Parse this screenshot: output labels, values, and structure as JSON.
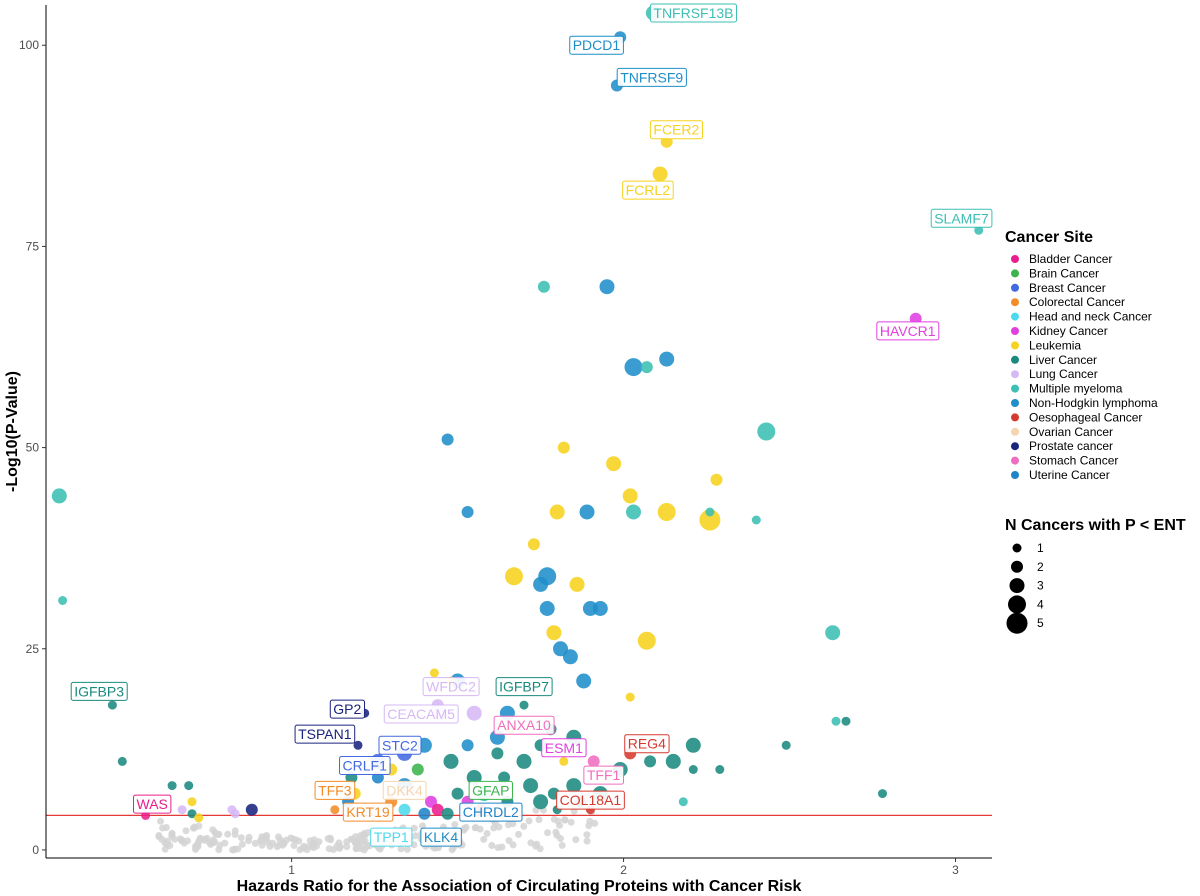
{
  "chart_data": {
    "type": "scatter",
    "title": "",
    "xlabel": "Hazards Ratio for the Association of Circulating Proteins with Cancer Risk",
    "ylabel": "-Log10(P-Value)",
    "xlim": [
      0.26,
      3.11
    ],
    "ylim": [
      -1,
      105
    ],
    "x_ticks": [
      1,
      2,
      3
    ],
    "y_ticks": [
      0,
      25,
      50,
      75,
      100
    ],
    "threshold_line": 4.3,
    "threshold_color": "#e53935",
    "grid": false,
    "legend": {
      "placement": "right",
      "color_title": "Cancer Site",
      "size_title": "N Cancers with P < ENT",
      "sizes": [
        1,
        2,
        3,
        4,
        5
      ]
    },
    "sites": [
      {
        "name": "Bladder Cancer",
        "color": "#e91e8c"
      },
      {
        "name": "Brain Cancer",
        "color": "#3cb44b"
      },
      {
        "name": "Breast Cancer",
        "color": "#4169e1"
      },
      {
        "name": "Colorectal Cancer",
        "color": "#f28c28"
      },
      {
        "name": "Head and neck Cancer",
        "color": "#4dd9ec"
      },
      {
        "name": "Kidney Cancer",
        "color": "#e040e0"
      },
      {
        "name": "Leukemia",
        "color": "#f7d21e"
      },
      {
        "name": "Liver Cancer",
        "color": "#1a8a7e"
      },
      {
        "name": "Lung Cancer",
        "color": "#d6b8f5"
      },
      {
        "name": "Multiple myeloma",
        "color": "#3cbfb4"
      },
      {
        "name": "Non-Hodgkin lymphoma",
        "color": "#1f8ec9"
      },
      {
        "name": "Oesophageal Cancer",
        "color": "#d63a2f"
      },
      {
        "name": "Ovarian Cancer",
        "color": "#f5d5b0"
      },
      {
        "name": "Prostate cancer",
        "color": "#1a237e"
      },
      {
        "name": "Stomach Cancer",
        "color": "#f06ec0"
      },
      {
        "name": "Uterine Cancer",
        "color": "#1f85c9"
      }
    ],
    "points": [
      {
        "x": 2.09,
        "y": 104,
        "site": "Multiple myeloma",
        "n": 3
      },
      {
        "x": 1.99,
        "y": 101,
        "site": "Non-Hodgkin lymphoma",
        "n": 2
      },
      {
        "x": 1.98,
        "y": 95,
        "site": "Non-Hodgkin lymphoma",
        "n": 2
      },
      {
        "x": 2.13,
        "y": 88,
        "site": "Leukemia",
        "n": 2
      },
      {
        "x": 2.11,
        "y": 84,
        "site": "Leukemia",
        "n": 3
      },
      {
        "x": 3.07,
        "y": 77,
        "site": "Multiple myeloma",
        "n": 1
      },
      {
        "x": 1.76,
        "y": 70,
        "site": "Multiple myeloma",
        "n": 2
      },
      {
        "x": 1.95,
        "y": 70,
        "site": "Non-Hodgkin lymphoma",
        "n": 3
      },
      {
        "x": 2.88,
        "y": 66,
        "site": "Kidney Cancer",
        "n": 2
      },
      {
        "x": 2.03,
        "y": 60,
        "site": "Non-Hodgkin lymphoma",
        "n": 4
      },
      {
        "x": 2.07,
        "y": 60,
        "site": "Multiple myeloma",
        "n": 2
      },
      {
        "x": 2.13,
        "y": 61,
        "site": "Non-Hodgkin lymphoma",
        "n": 3
      },
      {
        "x": 2.43,
        "y": 52,
        "site": "Multiple myeloma",
        "n": 4
      },
      {
        "x": 1.47,
        "y": 51,
        "site": "Non-Hodgkin lymphoma",
        "n": 2
      },
      {
        "x": 1.82,
        "y": 50,
        "site": "Leukemia",
        "n": 2
      },
      {
        "x": 1.97,
        "y": 48,
        "site": "Leukemia",
        "n": 3
      },
      {
        "x": 2.28,
        "y": 46,
        "site": "Leukemia",
        "n": 2
      },
      {
        "x": 0.3,
        "y": 44,
        "site": "Multiple myeloma",
        "n": 3
      },
      {
        "x": 2.02,
        "y": 44,
        "site": "Leukemia",
        "n": 3
      },
      {
        "x": 1.53,
        "y": 42,
        "site": "Non-Hodgkin lymphoma",
        "n": 2
      },
      {
        "x": 1.8,
        "y": 42,
        "site": "Leukemia",
        "n": 3
      },
      {
        "x": 1.89,
        "y": 42,
        "site": "Non-Hodgkin lymphoma",
        "n": 3
      },
      {
        "x": 2.03,
        "y": 42,
        "site": "Multiple myeloma",
        "n": 3
      },
      {
        "x": 2.13,
        "y": 42,
        "site": "Leukemia",
        "n": 4
      },
      {
        "x": 2.26,
        "y": 41,
        "site": "Leukemia",
        "n": 5
      },
      {
        "x": 2.26,
        "y": 42,
        "site": "Multiple myeloma",
        "n": 1
      },
      {
        "x": 2.4,
        "y": 41,
        "site": "Multiple myeloma",
        "n": 1
      },
      {
        "x": 1.73,
        "y": 38,
        "site": "Leukemia",
        "n": 2
      },
      {
        "x": 1.67,
        "y": 34,
        "site": "Leukemia",
        "n": 4
      },
      {
        "x": 1.77,
        "y": 34,
        "site": "Non-Hodgkin lymphoma",
        "n": 4
      },
      {
        "x": 1.75,
        "y": 33,
        "site": "Non-Hodgkin lymphoma",
        "n": 3
      },
      {
        "x": 1.86,
        "y": 33,
        "site": "Leukemia",
        "n": 3
      },
      {
        "x": 0.31,
        "y": 31,
        "site": "Multiple myeloma",
        "n": 1
      },
      {
        "x": 1.9,
        "y": 30,
        "site": "Non-Hodgkin lymphoma",
        "n": 3
      },
      {
        "x": 1.93,
        "y": 30,
        "site": "Non-Hodgkin lymphoma",
        "n": 3
      },
      {
        "x": 1.77,
        "y": 30,
        "site": "Non-Hodgkin lymphoma",
        "n": 3
      },
      {
        "x": 1.79,
        "y": 27,
        "site": "Leukemia",
        "n": 3
      },
      {
        "x": 2.07,
        "y": 26,
        "site": "Leukemia",
        "n": 4
      },
      {
        "x": 2.63,
        "y": 27,
        "site": "Multiple myeloma",
        "n": 3
      },
      {
        "x": 1.81,
        "y": 25,
        "site": "Non-Hodgkin lymphoma",
        "n": 3
      },
      {
        "x": 1.84,
        "y": 24,
        "site": "Non-Hodgkin lymphoma",
        "n": 3
      },
      {
        "x": 1.88,
        "y": 21,
        "site": "Non-Hodgkin lymphoma",
        "n": 3
      },
      {
        "x": 1.43,
        "y": 22,
        "site": "Leukemia",
        "n": 1
      },
      {
        "x": 1.5,
        "y": 21,
        "site": "Non-Hodgkin lymphoma",
        "n": 3
      },
      {
        "x": 2.02,
        "y": 19,
        "site": "Leukemia",
        "n": 1
      },
      {
        "x": 0.46,
        "y": 18,
        "site": "Liver Cancer",
        "n": 1
      },
      {
        "x": 1.7,
        "y": 18,
        "site": "Liver Cancer",
        "n": 1
      },
      {
        "x": 1.44,
        "y": 18,
        "site": "Lung Cancer",
        "n": 2
      },
      {
        "x": 1.55,
        "y": 17,
        "site": "Lung Cancer",
        "n": 3
      },
      {
        "x": 1.45,
        "y": 17,
        "site": "Lung Cancer",
        "n": 3
      },
      {
        "x": 1.22,
        "y": 17,
        "site": "Prostate cancer",
        "n": 1
      },
      {
        "x": 1.65,
        "y": 17,
        "site": "Non-Hodgkin lymphoma",
        "n": 3
      },
      {
        "x": 2.64,
        "y": 16,
        "site": "Multiple myeloma",
        "n": 1
      },
      {
        "x": 2.67,
        "y": 16,
        "site": "Liver Cancer",
        "n": 1
      },
      {
        "x": 1.78,
        "y": 15,
        "site": "Liver Cancer",
        "n": 2
      },
      {
        "x": 1.85,
        "y": 14,
        "site": "Liver Cancer",
        "n": 3
      },
      {
        "x": 1.2,
        "y": 13,
        "site": "Prostate cancer",
        "n": 1
      },
      {
        "x": 1.4,
        "y": 13,
        "site": "Non-Hodgkin lymphoma",
        "n": 3
      },
      {
        "x": 1.53,
        "y": 13,
        "site": "Non-Hodgkin lymphoma",
        "n": 2
      },
      {
        "x": 1.62,
        "y": 14,
        "site": "Non-Hodgkin lymphoma",
        "n": 3
      },
      {
        "x": 1.75,
        "y": 13,
        "site": "Liver Cancer",
        "n": 2
      },
      {
        "x": 1.34,
        "y": 12,
        "site": "Breast Cancer",
        "n": 3
      },
      {
        "x": 1.26,
        "y": 11,
        "site": "Breast Cancer",
        "n": 3
      },
      {
        "x": 1.62,
        "y": 12,
        "site": "Liver Cancer",
        "n": 2
      },
      {
        "x": 1.91,
        "y": 11,
        "site": "Stomach Cancer",
        "n": 2
      },
      {
        "x": 2.02,
        "y": 12,
        "site": "Oesophageal Cancer",
        "n": 2
      },
      {
        "x": 2.21,
        "y": 13,
        "site": "Liver Cancer",
        "n": 3
      },
      {
        "x": 2.49,
        "y": 13,
        "site": "Liver Cancer",
        "n": 1
      },
      {
        "x": 0.49,
        "y": 11,
        "site": "Liver Cancer",
        "n": 1
      },
      {
        "x": 1.48,
        "y": 11,
        "site": "Liver Cancer",
        "n": 3
      },
      {
        "x": 1.7,
        "y": 11,
        "site": "Liver Cancer",
        "n": 3
      },
      {
        "x": 1.82,
        "y": 11,
        "site": "Leukemia",
        "n": 1
      },
      {
        "x": 2.15,
        "y": 11,
        "site": "Liver Cancer",
        "n": 3
      },
      {
        "x": 2.08,
        "y": 11,
        "site": "Liver Cancer",
        "n": 2
      },
      {
        "x": 1.99,
        "y": 10,
        "site": "Liver Cancer",
        "n": 3
      },
      {
        "x": 1.38,
        "y": 10,
        "site": "Brain Cancer",
        "n": 2
      },
      {
        "x": 1.3,
        "y": 10,
        "site": "Leukemia",
        "n": 2
      },
      {
        "x": 1.55,
        "y": 9,
        "site": "Liver Cancer",
        "n": 3
      },
      {
        "x": 1.64,
        "y": 9,
        "site": "Liver Cancer",
        "n": 2
      },
      {
        "x": 2.21,
        "y": 10,
        "site": "Liver Cancer",
        "n": 1
      },
      {
        "x": 2.29,
        "y": 10,
        "site": "Liver Cancer",
        "n": 1
      },
      {
        "x": 1.26,
        "y": 9,
        "site": "Uterine Cancer",
        "n": 2
      },
      {
        "x": 1.18,
        "y": 9,
        "site": "Liver Cancer",
        "n": 2
      },
      {
        "x": 1.34,
        "y": 8,
        "site": "Non-Hodgkin lymphoma",
        "n": 3
      },
      {
        "x": 1.72,
        "y": 8,
        "site": "Liver Cancer",
        "n": 3
      },
      {
        "x": 1.85,
        "y": 8,
        "site": "Liver Cancer",
        "n": 3
      },
      {
        "x": 1.93,
        "y": 7,
        "site": "Liver Cancer",
        "n": 3
      },
      {
        "x": 0.64,
        "y": 8,
        "site": "Liver Cancer",
        "n": 1
      },
      {
        "x": 0.69,
        "y": 8,
        "site": "Liver Cancer",
        "n": 1
      },
      {
        "x": 1.19,
        "y": 7,
        "site": "Leukemia",
        "n": 2
      },
      {
        "x": 1.35,
        "y": 7,
        "site": "Ovarian Cancer",
        "n": 2
      },
      {
        "x": 1.5,
        "y": 7,
        "site": "Liver Cancer",
        "n": 2
      },
      {
        "x": 1.58,
        "y": 7,
        "site": "Multiple myeloma",
        "n": 3
      },
      {
        "x": 1.79,
        "y": 7,
        "site": "Liver Cancer",
        "n": 2
      },
      {
        "x": 2.78,
        "y": 7,
        "site": "Liver Cancer",
        "n": 1
      },
      {
        "x": 0.7,
        "y": 6,
        "site": "Leukemia",
        "n": 1
      },
      {
        "x": 1.17,
        "y": 6,
        "site": "Uterine Cancer",
        "n": 2
      },
      {
        "x": 1.3,
        "y": 6,
        "site": "Colorectal Cancer",
        "n": 2
      },
      {
        "x": 1.42,
        "y": 6,
        "site": "Kidney Cancer",
        "n": 2
      },
      {
        "x": 1.53,
        "y": 6,
        "site": "Kidney Cancer",
        "n": 2
      },
      {
        "x": 1.65,
        "y": 6,
        "site": "Liver Cancer",
        "n": 2
      },
      {
        "x": 1.75,
        "y": 6,
        "site": "Liver Cancer",
        "n": 3
      },
      {
        "x": 1.87,
        "y": 6,
        "site": "Liver Cancer",
        "n": 2
      },
      {
        "x": 2.18,
        "y": 6,
        "site": "Multiple myeloma",
        "n": 1
      },
      {
        "x": 0.67,
        "y": 5,
        "site": "Lung Cancer",
        "n": 1
      },
      {
        "x": 0.82,
        "y": 5,
        "site": "Lung Cancer",
        "n": 1
      },
      {
        "x": 0.88,
        "y": 5,
        "site": "Prostate cancer",
        "n": 2
      },
      {
        "x": 1.13,
        "y": 5,
        "site": "Colorectal Cancer",
        "n": 1
      },
      {
        "x": 1.24,
        "y": 5,
        "site": "Ovarian Cancer",
        "n": 2
      },
      {
        "x": 1.34,
        "y": 5,
        "site": "Head and neck Cancer",
        "n": 2
      },
      {
        "x": 1.44,
        "y": 5,
        "site": "Bladder Cancer",
        "n": 2
      },
      {
        "x": 1.57,
        "y": 5,
        "site": "Oesophageal Cancer",
        "n": 2
      },
      {
        "x": 1.8,
        "y": 5,
        "site": "Liver Cancer",
        "n": 1
      },
      {
        "x": 1.9,
        "y": 5,
        "site": "Oesophageal Cancer",
        "n": 1
      },
      {
        "x": 0.56,
        "y": 4.3,
        "site": "Bladder Cancer",
        "n": 1
      },
      {
        "x": 0.7,
        "y": 4.5,
        "site": "Liver Cancer",
        "n": 1
      },
      {
        "x": 0.72,
        "y": 4,
        "site": "Leukemia",
        "n": 1
      },
      {
        "x": 0.83,
        "y": 4.5,
        "site": "Lung Cancer",
        "n": 1
      },
      {
        "x": 1.4,
        "y": 4.5,
        "site": "Uterine Cancer",
        "n": 2
      },
      {
        "x": 1.47,
        "y": 4.5,
        "site": "Liver Cancer",
        "n": 2
      },
      {
        "x": 1.48,
        "y": 21,
        "site": "Leukemia",
        "n": 1
      },
      {
        "x": 1.66,
        "y": 15,
        "site": "Leukemia",
        "n": 1
      }
    ],
    "background_points": {
      "color": "#d3d3d3",
      "count": 240
    },
    "labels": [
      {
        "text": "TNFRSF13B",
        "x": 2.09,
        "y": 104,
        "site": "Multiple myeloma",
        "anchor": "start"
      },
      {
        "text": "PDCD1",
        "x": 1.99,
        "y": 100,
        "site": "Non-Hodgkin lymphoma",
        "anchor": "end"
      },
      {
        "text": "TNFRSF9",
        "x": 1.99,
        "y": 96,
        "site": "Non-Hodgkin lymphoma",
        "anchor": "start"
      },
      {
        "text": "FCER2",
        "x": 2.09,
        "y": 89.5,
        "site": "Leukemia",
        "anchor": "start"
      },
      {
        "text": "FCRL2",
        "x": 2.14,
        "y": 82,
        "site": "Leukemia",
        "anchor": "end"
      },
      {
        "text": "SLAMF7",
        "x": 3.1,
        "y": 78.5,
        "site": "Multiple myeloma",
        "anchor": "end"
      },
      {
        "text": "HAVCR1",
        "x": 2.94,
        "y": 64.5,
        "site": "Kidney Cancer",
        "anchor": "end"
      },
      {
        "text": "IGFBP3",
        "x": 0.42,
        "y": 19.7,
        "site": "Liver Cancer",
        "anchor": "middle"
      },
      {
        "text": "IGFBP7",
        "x": 1.7,
        "y": 20.3,
        "site": "Liver Cancer",
        "anchor": "middle"
      },
      {
        "text": "WFDC2",
        "x": 1.48,
        "y": 20.3,
        "site": "Lung Cancer",
        "anchor": "middle"
      },
      {
        "text": "GP2",
        "x": 1.21,
        "y": 17.5,
        "site": "Prostate cancer",
        "anchor": "end"
      },
      {
        "text": "CEACAM5",
        "x": 1.39,
        "y": 16.9,
        "site": "Lung Cancer",
        "anchor": "middle"
      },
      {
        "text": "ANXA10",
        "x": 1.7,
        "y": 15.5,
        "site": "Stomach Cancer",
        "anchor": "middle"
      },
      {
        "text": "TSPAN1",
        "x": 1.1,
        "y": 14.4,
        "site": "Prostate cancer",
        "anchor": "middle"
      },
      {
        "text": "STC2",
        "x": 1.38,
        "y": 13,
        "site": "Breast Cancer",
        "anchor": "end"
      },
      {
        "text": "ESM1",
        "x": 1.82,
        "y": 12.7,
        "site": "Kidney Cancer",
        "anchor": "middle"
      },
      {
        "text": "REG4",
        "x": 2.07,
        "y": 13.2,
        "site": "Oesophageal Cancer",
        "anchor": "middle"
      },
      {
        "text": "CRLF1",
        "x": 1.22,
        "y": 10.5,
        "site": "Breast Cancer",
        "anchor": "middle"
      },
      {
        "text": "TFF1",
        "x": 1.94,
        "y": 9.3,
        "site": "Stomach Cancer",
        "anchor": "middle"
      },
      {
        "text": "TFF3",
        "x": 1.13,
        "y": 7.4,
        "site": "Colorectal Cancer",
        "anchor": "middle"
      },
      {
        "text": "DKK4",
        "x": 1.34,
        "y": 7.4,
        "site": "Ovarian Cancer",
        "anchor": "middle"
      },
      {
        "text": "GFAP",
        "x": 1.6,
        "y": 7.4,
        "site": "Brain Cancer",
        "anchor": "middle"
      },
      {
        "text": "COL18A1",
        "x": 1.9,
        "y": 6.2,
        "site": "Oesophageal Cancer",
        "anchor": "middle"
      },
      {
        "text": "WAS",
        "x": 0.58,
        "y": 5.7,
        "site": "Bladder Cancer",
        "anchor": "middle"
      },
      {
        "text": "KRT19",
        "x": 1.23,
        "y": 4.7,
        "site": "Colorectal Cancer",
        "anchor": "middle"
      },
      {
        "text": "CHRDL2",
        "x": 1.6,
        "y": 4.7,
        "site": "Uterine Cancer",
        "anchor": "middle"
      },
      {
        "text": "TPP1",
        "x": 1.3,
        "y": 1.6,
        "site": "Head and neck Cancer",
        "anchor": "middle"
      },
      {
        "text": "KLK4",
        "x": 1.45,
        "y": 1.6,
        "site": "Non-Hodgkin lymphoma",
        "anchor": "middle"
      }
    ]
  }
}
